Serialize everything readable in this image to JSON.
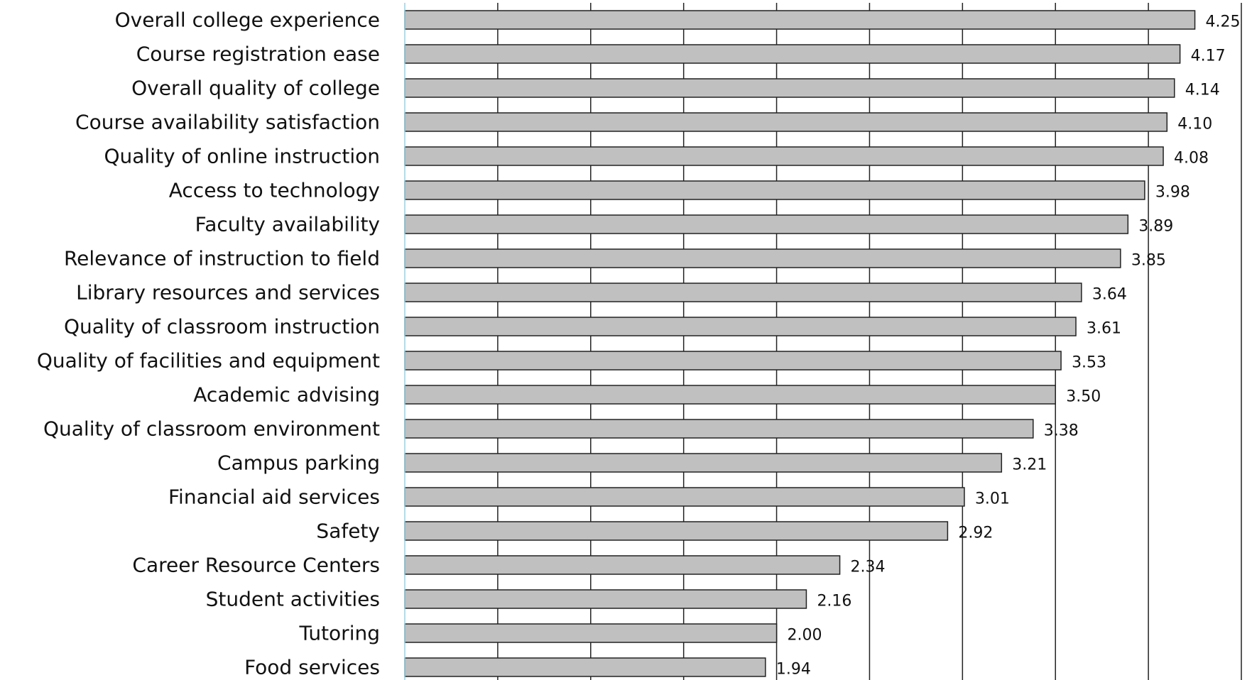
{
  "chart_data": {
    "type": "bar",
    "orientation": "horizontal",
    "title": "",
    "xlabel": "",
    "ylabel": "",
    "categories": [
      "Overall college experience",
      "Course registration ease",
      "Overall quality of college",
      "Course availability satisfaction",
      "Quality of online instruction",
      "Access to technology",
      "Faculty availability",
      "Relevance of instruction to field",
      "Library resources and services",
      "Quality of classroom instruction",
      "Quality of facilities and equipment",
      "Academic advising",
      "Quality of classroom environment",
      "Campus parking",
      "Financial aid services",
      "Safety",
      "Career Resource Centers",
      "Student activities",
      "Tutoring",
      "Food services"
    ],
    "values": [
      4.25,
      4.17,
      4.14,
      4.1,
      4.08,
      3.98,
      3.89,
      3.85,
      3.64,
      3.61,
      3.53,
      3.5,
      3.38,
      3.21,
      3.01,
      2.92,
      2.34,
      2.16,
      2.0,
      1.94
    ],
    "value_labels": [
      "4.25",
      "4.17",
      "4.14",
      "4.10",
      "4.08",
      "3.98",
      "3.89",
      "3.85",
      "3.64",
      "3.61",
      "3.53",
      "3.50",
      "3.38",
      "3.21",
      "3.01",
      "2.92",
      "2.34",
      "2.16",
      "2.00",
      "1.94"
    ],
    "xlim": [
      0,
      4.5
    ],
    "grid": true,
    "legend": "none",
    "colors": {
      "bar_fill": "#c0c0c0",
      "bar_stroke": "#222222",
      "grid": "#222222",
      "axis": "#9ecfe0",
      "text": "#111111"
    }
  }
}
